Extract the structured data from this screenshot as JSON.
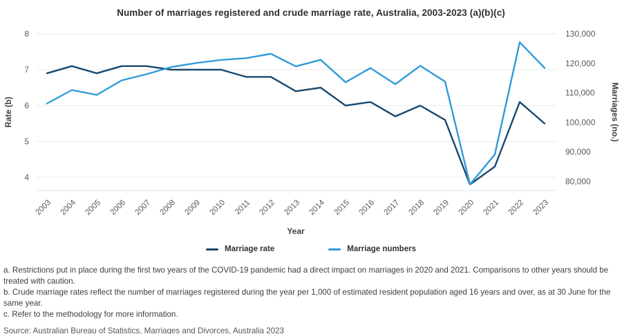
{
  "title": "Number of marriages registered and crude marriage rate, Australia, 2003-2023 (a)(b)(c)",
  "chart_data": {
    "type": "line",
    "x": [
      2003,
      2004,
      2005,
      2006,
      2007,
      2008,
      2009,
      2010,
      2011,
      2012,
      2013,
      2014,
      2015,
      2016,
      2017,
      2018,
      2019,
      2020,
      2021,
      2022,
      2023
    ],
    "series": [
      {
        "name": "Marriage rate",
        "axis": "left",
        "color": "#17486E",
        "values": [
          6.9,
          7.1,
          6.9,
          7.1,
          7.1,
          7.0,
          7.0,
          7.0,
          6.8,
          6.8,
          6.4,
          6.5,
          6.0,
          6.1,
          5.7,
          6.0,
          5.6,
          3.8,
          4.3,
          6.1,
          5.5
        ]
      },
      {
        "name": "Marriage numbers",
        "axis": "right",
        "color": "#2F9BD9",
        "values": [
          106394,
          110958,
          109323,
          114222,
          116322,
          118756,
          120118,
          121176,
          121752,
          123244,
          118962,
          121197,
          113595,
          118401,
          112954,
          119188,
          113815,
          78989,
          89164,
          127161,
          118439
        ]
      }
    ],
    "xlabel": "Year",
    "ylabel_left": "Rate (b)",
    "ylabel_right": "Marriages (no.)",
    "left_axis": {
      "ticks": [
        8,
        7,
        6,
        5,
        4
      ],
      "tick_labels": [
        "8",
        "7",
        "6",
        "5",
        "4"
      ],
      "top_value": 8
    },
    "right_axis": {
      "ticks": [
        130000,
        120000,
        110000,
        100000,
        90000,
        80000
      ],
      "tick_labels": [
        "130,000",
        "120,000",
        "110,000",
        "100,000",
        "90,000",
        "80,000"
      ],
      "top_value": 130000
    },
    "grid": true,
    "legend_position": "bottom"
  },
  "legend": {
    "items": [
      {
        "label": "Marriage rate",
        "color": "#17486E"
      },
      {
        "label": "Marriage numbers",
        "color": "#2F9BD9"
      }
    ]
  },
  "footnotes": [
    "a. Restrictions put in place during the first two years of the COVID-19 pandemic had a direct impact on marriages in 2020 and 2021. Comparisons to other years should be treated with caution.",
    "b. Crude marriage rates reflect the number of marriages registered during the year per 1,000 of estimated resident population aged 16 years and over, as at 30 June for the same year.",
    "c. Refer to the methodology for more information."
  ],
  "source": "Source: Australian Bureau of Statistics, Marriages and Divorces, Australia 2023"
}
